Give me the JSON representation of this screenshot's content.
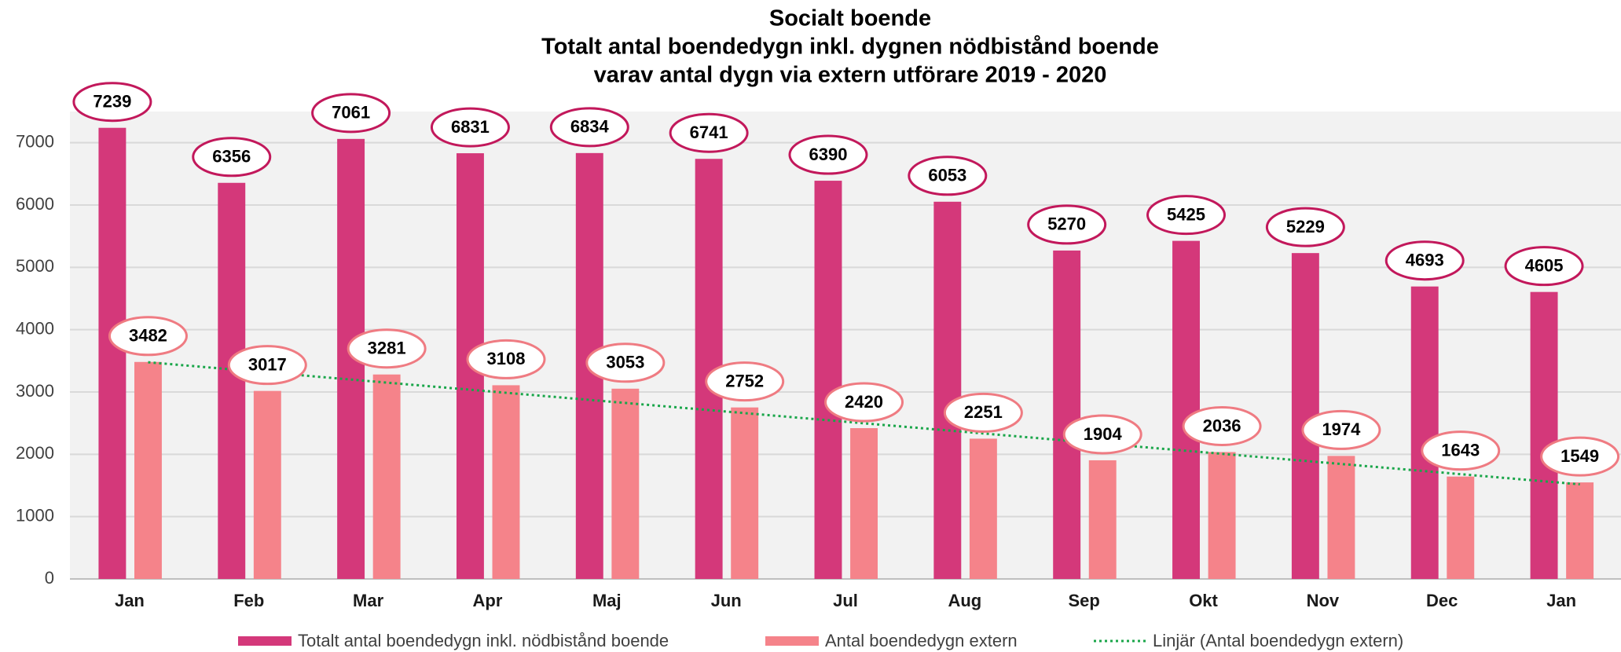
{
  "chart_data": {
    "type": "bar",
    "title": [
      "Socialt boende",
      "Totalt antal boendedygn inkl. dygnen nödbistånd boende",
      "varav antal dygn via extern utförare 2019 - 2020"
    ],
    "categories": [
      "Jan",
      "Feb",
      "Mar",
      "Apr",
      "Maj",
      "Jun",
      "Jul",
      "Aug",
      "Sep",
      "Okt",
      "Nov",
      "Dec",
      "Jan"
    ],
    "series": [
      {
        "name": "Totalt antal boendedygn inkl. nödbistånd boende",
        "color": "#d4387a",
        "label_stroke": "#c2185b",
        "values": [
          7239,
          6356,
          7061,
          6831,
          6834,
          6741,
          6390,
          6053,
          5270,
          5425,
          5229,
          4693,
          4605
        ]
      },
      {
        "name": "Antal boendedygn extern",
        "color": "#f5838a",
        "label_stroke": "#ef7b82",
        "values": [
          3482,
          3017,
          3281,
          3108,
          3053,
          2752,
          2420,
          2251,
          1904,
          2036,
          1974,
          1643,
          1549
        ]
      }
    ],
    "trendline": {
      "name": "Linjär (Antal boendedygn extern)",
      "color": "#1aa64a",
      "series": 1
    },
    "ylim": [
      0,
      7500
    ],
    "yticks": [
      0,
      1000,
      2000,
      3000,
      4000,
      5000,
      6000,
      7000
    ],
    "grid": true
  }
}
